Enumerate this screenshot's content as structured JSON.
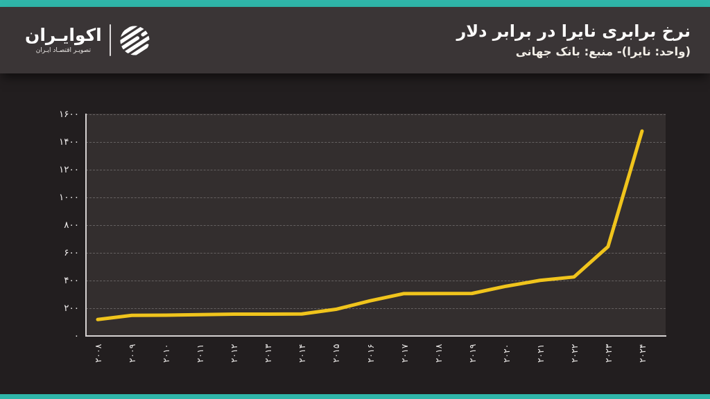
{
  "brand": {
    "name": "اکوایـران",
    "tagline": "تصویـر اقتصـاد ایـران",
    "logo_icon": "ecoiran-striped-globe-icon"
  },
  "header": {
    "title": "نرخ برابری نایرا در برابر دلار",
    "subtitle": "(واحد: نایرا)- منبع: بانک جهانی"
  },
  "colors": {
    "accent_teal": "#2fb6a9",
    "line_yellow": "#f0c41c",
    "header_bg": "#3a3536",
    "page_bg": "#221e1f",
    "plot_bg": "#332e2e",
    "grid_line": "#6e6a6a",
    "axis_line": "#d6d2d2",
    "text_light": "#f5f2ef"
  },
  "chart_data": {
    "type": "line",
    "title": "نرخ برابری نایرا در برابر دلار",
    "subtitle": "(واحد: نایرا)- منبع: بانک جهانی",
    "unit": "نایرا",
    "source": "بانک جهانی",
    "categories": [
      "۲۰۰۸",
      "۲۰۰۹",
      "۲۰۱۰",
      "۲۰۱۱",
      "۲۰۱۲",
      "۲۰۱۳",
      "۲۰۱۴",
      "۲۰۱۵",
      "۲۰۱۶",
      "۲۰۱۷",
      "۲۰۱۸",
      "۲۰۱۹",
      "۲۰۲۰",
      "۲۰۲۱",
      "۲۰۲۲",
      "۲۰۲۳",
      "۲۰۲۴"
    ],
    "categories_en": [
      2008,
      2009,
      2010,
      2011,
      2012,
      2013,
      2014,
      2015,
      2016,
      2017,
      2018,
      2019,
      2020,
      2021,
      2022,
      2023,
      2024
    ],
    "series": [
      {
        "name": "نرخ برابری نایرا در برابر دلار",
        "values": [
          118.6,
          148.9,
          150.3,
          153.9,
          157.5,
          157.3,
          158.6,
          192.4,
          253.5,
          305.8,
          306.1,
          306.9,
          358.8,
          401.2,
          425.9,
          645.2,
          1479
        ]
      }
    ],
    "ylim": [
      0,
      1600
    ],
    "y_tick_step": 200,
    "y_tick_labels": [
      "۰",
      "۲۰۰",
      "۴۰۰",
      "۶۰۰",
      "۸۰۰",
      "۱۰۰۰",
      "۱۲۰۰",
      "۱۴۰۰",
      "۱۶۰۰"
    ],
    "x_tick_rotation_deg": -90,
    "grid": "horizontal-dashed",
    "legend": "none",
    "line_color": "#f0c41c",
    "line_width": 5
  }
}
